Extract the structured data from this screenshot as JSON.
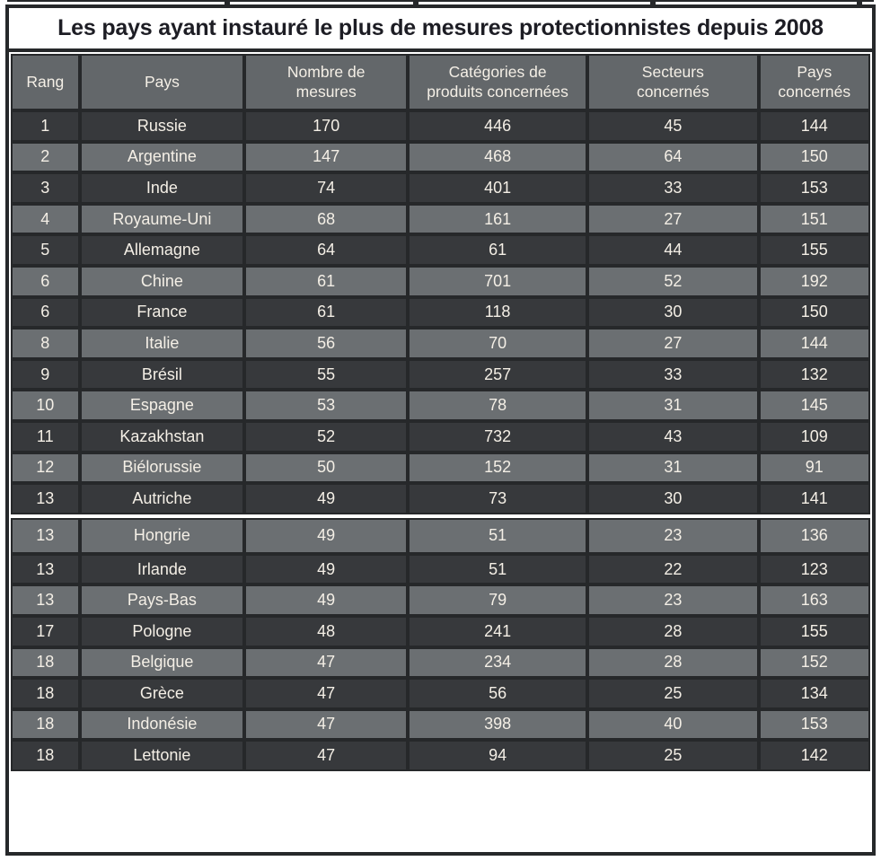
{
  "chart_data": {
    "type": "table",
    "title": "Les pays ayant instauré le plus de mesures protectionnistes depuis 2008",
    "columns": [
      "Rang",
      "Pays",
      "Nombre de mesures",
      "Catégories de produits concernées",
      "Secteurs concernés",
      "Pays concernés"
    ],
    "rows": [
      [
        "1",
        "Russie",
        170,
        446,
        45,
        144
      ],
      [
        "2",
        "Argentine",
        147,
        468,
        64,
        150
      ],
      [
        "3",
        "Inde",
        74,
        401,
        33,
        153
      ],
      [
        "4",
        "Royaume-Uni",
        68,
        161,
        27,
        151
      ],
      [
        "5",
        "Allemagne",
        64,
        61,
        44,
        155
      ],
      [
        "6",
        "Chine",
        61,
        701,
        52,
        192
      ],
      [
        "6",
        "France",
        61,
        118,
        30,
        150
      ],
      [
        "8",
        "Italie",
        56,
        70,
        27,
        144
      ],
      [
        "9",
        "Brésil",
        55,
        257,
        33,
        132
      ],
      [
        "10",
        "Espagne",
        53,
        78,
        31,
        145
      ],
      [
        "11",
        "Kazakhstan",
        52,
        732,
        43,
        109
      ],
      [
        "12",
        "Biélorussie",
        50,
        152,
        31,
        91
      ],
      [
        "13",
        "Autriche",
        49,
        73,
        30,
        141
      ],
      [
        "13",
        "Hongrie",
        49,
        51,
        23,
        136
      ],
      [
        "13",
        "Irlande",
        49,
        51,
        22,
        123
      ],
      [
        "13",
        "Pays-Bas",
        49,
        79,
        23,
        163
      ],
      [
        "17",
        "Pologne",
        48,
        241,
        28,
        155
      ],
      [
        "18",
        "Belgique",
        47,
        234,
        28,
        152
      ],
      [
        "18",
        "Grèce",
        47,
        56,
        25,
        134
      ],
      [
        "18",
        "Indonésie",
        47,
        398,
        40,
        153
      ],
      [
        "18",
        "Lettonie",
        47,
        94,
        25,
        142
      ]
    ],
    "layout": {
      "first_row_shade": "dark",
      "alternating_shades": true,
      "page_break_gap_before_row": 13
    }
  },
  "table_display": {
    "column_headers": [
      "Rang",
      "Pays",
      "Nombre de\nmesures",
      "Catégories de\nproduits concernées",
      "Secteurs\nconcernés",
      "Pays\nconcernés"
    ]
  },
  "colors": {
    "frame": "#26282a",
    "row_dark": "#37393c",
    "row_light": "#6b6f72",
    "header_bg": "#63676a",
    "cell_text": "#f4efe6",
    "title_text": "#1d1d24"
  }
}
